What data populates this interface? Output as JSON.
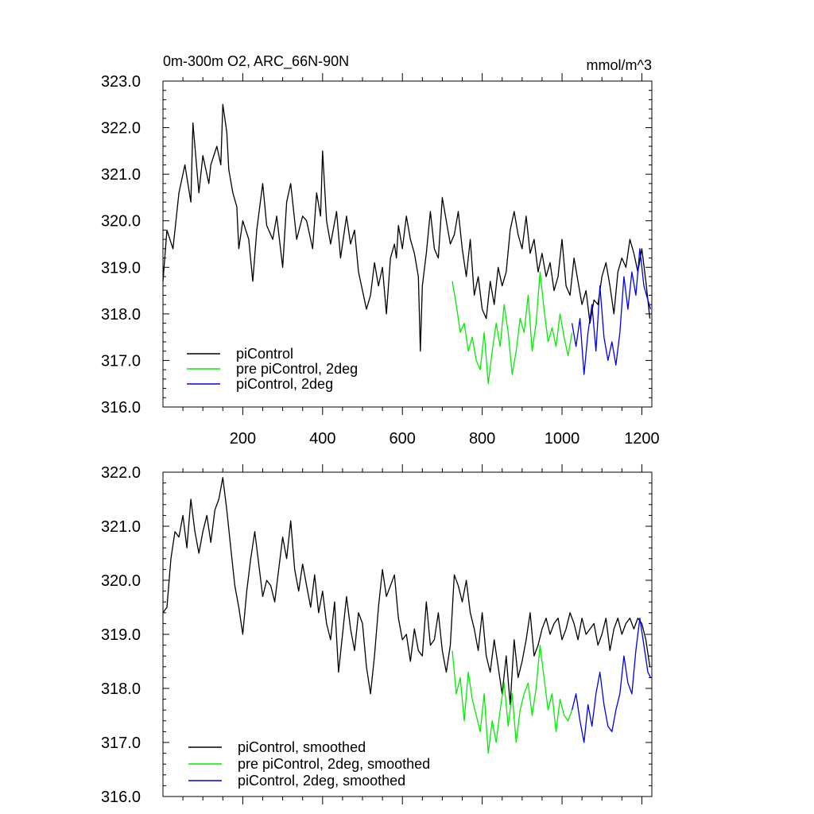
{
  "header": {
    "title": "0m-300m O2, ARC_66N-90N",
    "units": "mmol/m^3"
  },
  "colors": {
    "piControl": "#000000",
    "pre_piControl_2deg": "#00ee00",
    "piControl_2deg": "#0000ee"
  },
  "chart_data": [
    {
      "type": "line",
      "title": "0m-300m O2, ARC_66N-90N",
      "xlabel": "",
      "ylabel": "",
      "xlim": [
        0,
        1225
      ],
      "ylim": [
        316.0,
        323.0
      ],
      "xticks": [
        200,
        400,
        600,
        800,
        1000,
        1200
      ],
      "xtick_labels": [
        "200",
        "400",
        "600",
        "800",
        "1000",
        "1200"
      ],
      "yticks": [
        316.0,
        317.0,
        318.0,
        319.0,
        320.0,
        321.0,
        322.0,
        323.0
      ],
      "ytick_labels": [
        "316.0",
        "317.0",
        "318.0",
        "319.0",
        "320.0",
        "321.0",
        "322.0",
        "323.0"
      ],
      "grid": false,
      "legend_position": "bottom-left",
      "series": [
        {
          "name": "piControl",
          "color": "#000000",
          "x": [
            0,
            10,
            25,
            40,
            55,
            70,
            75,
            90,
            100,
            115,
            120,
            135,
            145,
            150,
            160,
            165,
            175,
            185,
            190,
            200,
            215,
            225,
            235,
            250,
            260,
            275,
            285,
            300,
            310,
            320,
            335,
            350,
            360,
            375,
            385,
            395,
            400,
            410,
            420,
            435,
            445,
            460,
            470,
            480,
            490,
            500,
            510,
            520,
            530,
            540,
            550,
            560,
            570,
            580,
            585,
            590,
            600,
            610,
            620,
            630,
            640,
            645,
            650,
            660,
            670,
            680,
            690,
            700,
            710,
            720,
            730,
            740,
            750,
            760,
            770,
            780,
            790,
            800,
            810,
            820,
            830,
            840,
            850,
            860,
            870,
            880,
            890,
            900,
            910,
            920,
            930,
            940,
            950,
            960,
            970,
            980,
            990,
            1000,
            1010,
            1020,
            1030,
            1040,
            1050,
            1060,
            1070,
            1080,
            1090,
            1100,
            1110,
            1120,
            1130,
            1140,
            1150,
            1160,
            1170,
            1180,
            1190,
            1200,
            1210,
            1220
          ],
          "y": [
            318.7,
            319.8,
            319.4,
            320.6,
            321.2,
            320.4,
            322.1,
            320.6,
            321.4,
            320.8,
            321.2,
            321.6,
            321.2,
            322.5,
            321.9,
            321.1,
            320.6,
            320.3,
            319.4,
            320.0,
            319.6,
            318.7,
            319.8,
            320.8,
            319.9,
            319.6,
            320.1,
            319.0,
            320.4,
            320.8,
            319.6,
            320.1,
            320.0,
            319.4,
            320.6,
            320.1,
            321.5,
            320.0,
            319.5,
            320.2,
            319.2,
            320.1,
            319.5,
            319.8,
            318.9,
            318.5,
            318.1,
            318.4,
            319.1,
            318.6,
            319.0,
            318.0,
            319.2,
            319.5,
            319.2,
            319.9,
            319.4,
            320.1,
            319.6,
            319.3,
            318.8,
            317.2,
            318.6,
            319.3,
            320.2,
            319.4,
            319.2,
            320.5,
            320.0,
            319.5,
            319.7,
            320.2,
            319.4,
            318.8,
            319.6,
            318.4,
            318.8,
            318.1,
            317.9,
            318.7,
            318.2,
            319.0,
            318.6,
            318.9,
            319.8,
            320.2,
            319.7,
            319.4,
            320.1,
            319.3,
            319.6,
            318.9,
            319.3,
            318.8,
            319.1,
            318.5,
            318.8,
            319.6,
            318.6,
            318.4,
            319.2,
            318.7,
            318.2,
            318.5,
            317.8,
            318.3,
            318.2,
            318.8,
            319.1,
            318.6,
            318.0,
            318.9,
            319.2,
            319.0,
            319.6,
            319.3,
            318.9,
            319.4,
            318.7,
            317.9
          ]
        },
        {
          "name": "pre piControl, 2deg",
          "color": "#00ee00",
          "x": [
            725,
            735,
            745,
            755,
            765,
            775,
            785,
            795,
            805,
            815,
            825,
            835,
            845,
            855,
            865,
            875,
            885,
            895,
            905,
            915,
            925,
            935,
            945,
            955,
            965,
            975,
            985,
            995,
            1005,
            1015,
            1025
          ],
          "y": [
            318.7,
            318.2,
            317.6,
            317.8,
            317.2,
            317.5,
            317.0,
            316.8,
            317.6,
            316.5,
            317.2,
            317.8,
            317.3,
            318.2,
            317.6,
            316.7,
            317.2,
            317.9,
            317.6,
            318.4,
            317.2,
            317.8,
            318.9,
            318.1,
            317.4,
            317.7,
            317.3,
            318.0,
            317.5,
            317.1,
            317.6
          ]
        },
        {
          "name": "piControl, 2deg",
          "color": "#0000ee",
          "x": [
            1025,
            1035,
            1045,
            1055,
            1065,
            1075,
            1085,
            1095,
            1105,
            1115,
            1125,
            1135,
            1145,
            1155,
            1165,
            1175,
            1185,
            1195,
            1205,
            1215,
            1222
          ],
          "y": [
            317.8,
            317.3,
            317.9,
            316.7,
            317.6,
            318.2,
            317.2,
            318.6,
            317.5,
            317.0,
            317.4,
            316.9,
            317.6,
            318.8,
            318.1,
            318.9,
            318.4,
            319.4,
            318.6,
            318.3,
            318.1
          ]
        }
      ]
    },
    {
      "type": "line",
      "title": "",
      "xlabel": "",
      "ylabel": "",
      "xlim": [
        0,
        1225
      ],
      "ylim": [
        316.0,
        322.0
      ],
      "xticks": [
        200,
        400,
        600,
        800,
        1000,
        1200
      ],
      "xtick_labels": [],
      "yticks": [
        316.0,
        317.0,
        318.0,
        319.0,
        320.0,
        321.0,
        322.0
      ],
      "ytick_labels": [
        "316.0",
        "317.0",
        "318.0",
        "319.0",
        "320.0",
        "321.0",
        "322.0"
      ],
      "grid": false,
      "legend_position": "bottom-left",
      "series": [
        {
          "name": "piControl, smoothed",
          "color": "#000000",
          "x": [
            0,
            10,
            20,
            30,
            40,
            50,
            60,
            70,
            80,
            90,
            100,
            110,
            120,
            130,
            140,
            150,
            160,
            170,
            180,
            190,
            200,
            210,
            220,
            230,
            240,
            250,
            260,
            270,
            280,
            290,
            300,
            310,
            320,
            330,
            340,
            350,
            360,
            370,
            380,
            390,
            400,
            410,
            420,
            430,
            440,
            450,
            460,
            470,
            480,
            490,
            500,
            510,
            520,
            530,
            540,
            550,
            560,
            570,
            580,
            590,
            600,
            610,
            620,
            630,
            640,
            650,
            660,
            670,
            680,
            690,
            700,
            710,
            720,
            730,
            740,
            750,
            760,
            770,
            780,
            790,
            800,
            810,
            820,
            830,
            840,
            850,
            860,
            870,
            880,
            890,
            900,
            910,
            920,
            930,
            940,
            950,
            960,
            970,
            980,
            990,
            1000,
            1010,
            1020,
            1030,
            1040,
            1050,
            1060,
            1070,
            1080,
            1090,
            1100,
            1110,
            1120,
            1130,
            1140,
            1150,
            1160,
            1170,
            1180,
            1190,
            1200,
            1210,
            1220
          ],
          "y": [
            319.4,
            319.5,
            320.4,
            320.9,
            320.8,
            321.2,
            320.6,
            321.5,
            320.9,
            320.5,
            320.9,
            321.2,
            320.7,
            321.3,
            321.5,
            321.9,
            321.3,
            320.6,
            319.9,
            319.5,
            319.0,
            319.8,
            320.4,
            320.9,
            320.3,
            319.7,
            320.0,
            319.9,
            319.6,
            320.2,
            320.8,
            320.4,
            321.1,
            320.2,
            319.8,
            320.3,
            319.9,
            319.5,
            320.1,
            319.4,
            319.8,
            319.2,
            318.9,
            319.6,
            318.3,
            319.0,
            319.7,
            319.1,
            318.7,
            319.4,
            319.2,
            318.4,
            317.9,
            318.6,
            319.5,
            320.2,
            319.7,
            319.9,
            320.1,
            319.3,
            318.9,
            319.0,
            318.5,
            319.1,
            318.7,
            318.6,
            319.6,
            318.8,
            318.9,
            319.4,
            318.7,
            318.3,
            318.8,
            320.1,
            319.9,
            319.6,
            320.0,
            319.4,
            319.1,
            318.7,
            319.4,
            318.6,
            318.3,
            318.9,
            318.4,
            317.9,
            318.6,
            317.7,
            318.9,
            318.2,
            318.5,
            318.9,
            319.4,
            318.6,
            318.8,
            319.1,
            319.3,
            319.0,
            319.2,
            319.3,
            318.9,
            319.1,
            319.4,
            319.2,
            318.9,
            319.3,
            319.0,
            319.1,
            319.2,
            318.8,
            319.0,
            319.3,
            318.7,
            319.1,
            319.3,
            319.0,
            319.2,
            319.3,
            319.1,
            319.3,
            319.2,
            318.9,
            318.4
          ]
        },
        {
          "name": "pre piControl, 2deg, smoothed",
          "color": "#00ee00",
          "x": [
            725,
            735,
            745,
            755,
            765,
            775,
            785,
            795,
            805,
            815,
            825,
            835,
            845,
            855,
            865,
            875,
            885,
            895,
            905,
            915,
            925,
            935,
            945,
            955,
            965,
            975,
            985,
            995,
            1005,
            1015,
            1025
          ],
          "y": [
            318.7,
            317.9,
            318.2,
            317.4,
            318.3,
            317.8,
            317.5,
            317.2,
            317.9,
            316.8,
            317.4,
            317.0,
            317.6,
            318.1,
            317.3,
            317.9,
            317.0,
            317.6,
            317.9,
            318.1,
            317.5,
            318.0,
            318.8,
            318.2,
            317.6,
            317.9,
            317.2,
            317.8,
            317.5,
            317.4,
            317.6
          ]
        },
        {
          "name": "piControl, 2deg, smoothed",
          "color": "#0000ee",
          "x": [
            1025,
            1035,
            1045,
            1055,
            1065,
            1075,
            1085,
            1095,
            1105,
            1115,
            1125,
            1135,
            1145,
            1155,
            1165,
            1175,
            1185,
            1195,
            1205,
            1215,
            1222
          ],
          "y": [
            317.6,
            317.9,
            317.4,
            317.0,
            317.7,
            317.3,
            317.9,
            318.3,
            317.7,
            317.3,
            317.2,
            317.6,
            317.9,
            318.6,
            318.1,
            317.9,
            318.7,
            319.3,
            318.8,
            318.3,
            318.2
          ]
        }
      ]
    }
  ]
}
